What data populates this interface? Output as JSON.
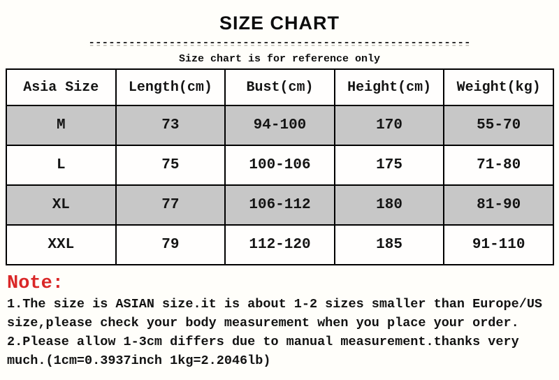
{
  "header": {
    "title": "SIZE CHART",
    "divider_dashes": "---------------------------------------------------------",
    "subtitle": "Size chart is for reference only"
  },
  "table": {
    "headers": [
      "Asia Size",
      "Length(cm)",
      "Bust(cm)",
      "Height(cm)",
      "Weight(kg)"
    ],
    "rows": [
      {
        "cells": [
          "M",
          "73",
          "94-100",
          "170",
          "55-70"
        ],
        "shaded": true
      },
      {
        "cells": [
          "L",
          "75",
          "100-106",
          "175",
          "71-80"
        ],
        "shaded": false
      },
      {
        "cells": [
          "XL",
          "77",
          "106-112",
          "180",
          "81-90"
        ],
        "shaded": true
      },
      {
        "cells": [
          "XXL",
          "79",
          "112-120",
          "185",
          "91-110"
        ],
        "shaded": false
      }
    ]
  },
  "note": {
    "label": "Note:",
    "line1": "1.The size is ASIAN size.it is about 1-2 sizes smaller than Europe/US",
    "line2": "size,please check your body measurement when you place your order.",
    "line3": "2.Please allow 1-3cm differs due to manual measurement.thanks very",
    "line4": "much.(1cm=0.3937inch 1kg=2.2046lb)"
  },
  "colors": {
    "shaded_row": "#c7c7c7",
    "note_red": "#da2727",
    "border": "#000000",
    "background": "#fffefa"
  }
}
